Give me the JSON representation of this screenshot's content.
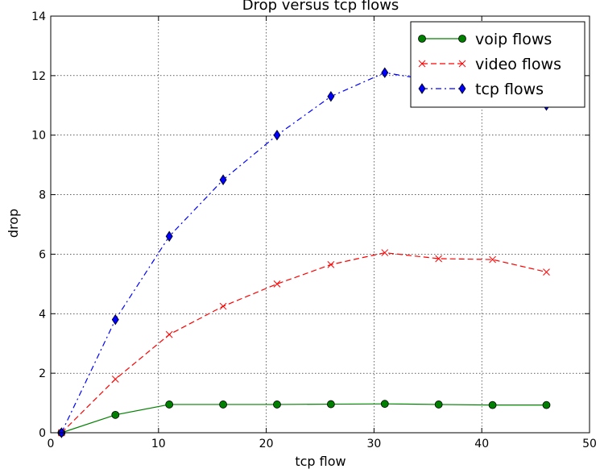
{
  "chart_data": {
    "type": "line",
    "title": "Drop versus tcp flows",
    "xlabel": "tcp flow",
    "ylabel": "drop",
    "xlim": [
      0,
      50
    ],
    "ylim": [
      0,
      14
    ],
    "xticks": [
      0,
      10,
      20,
      30,
      40,
      50
    ],
    "yticks": [
      0,
      2,
      4,
      6,
      8,
      10,
      12,
      14
    ],
    "xtick_labels": [
      "0",
      "10",
      "20",
      "30",
      "40",
      "50"
    ],
    "ytick_labels": [
      "0",
      "2",
      "4",
      "6",
      "8",
      "10",
      "12",
      "14"
    ],
    "grid": true,
    "legend_position": "top-right",
    "x": [
      1,
      6,
      11,
      16,
      21,
      26,
      31,
      36,
      41,
      46
    ],
    "series": [
      {
        "name": "voip flows",
        "color": "#008000",
        "line": "solid",
        "marker": "circle",
        "values": [
          0.0,
          0.6,
          0.95,
          0.95,
          0.95,
          0.96,
          0.97,
          0.95,
          0.93,
          0.93
        ]
      },
      {
        "name": "video flows",
        "color": "#ff0000",
        "line": "dashed",
        "marker": "x",
        "values": [
          0.0,
          1.8,
          3.3,
          4.25,
          5.0,
          5.65,
          6.05,
          5.85,
          5.82,
          5.4
        ]
      },
      {
        "name": "tcp flows",
        "color": "#0000ff",
        "line": "dashdot",
        "marker": "diamond",
        "values": [
          0.0,
          3.8,
          6.6,
          8.5,
          10.0,
          11.3,
          12.1,
          11.8,
          11.6,
          11.0
        ]
      }
    ]
  }
}
